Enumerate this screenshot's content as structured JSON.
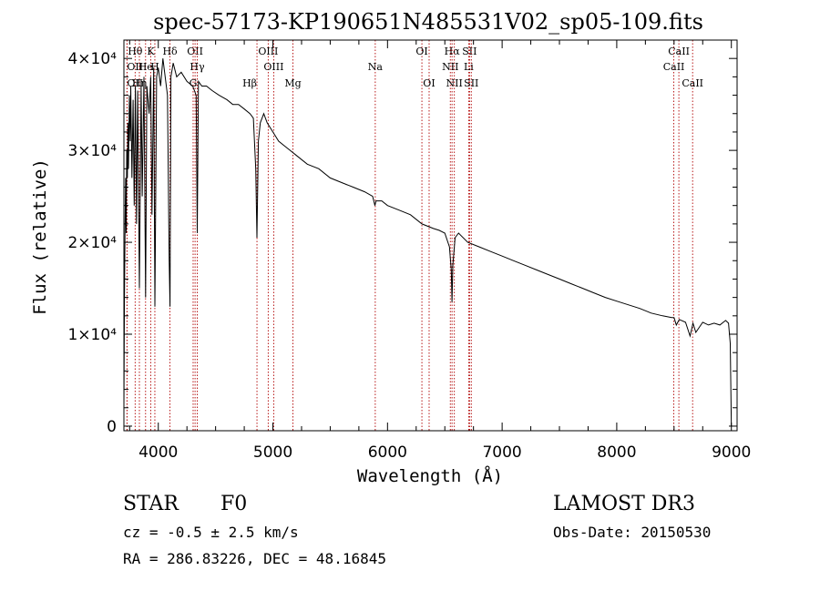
{
  "chart_data": {
    "type": "line",
    "title": "spec-57173-KP190651N485531V02_sp05-109.fits",
    "xlabel": "Wavelength (Å)",
    "ylabel": "Flux (relative)",
    "xlim": [
      3700,
      9050
    ],
    "ylim": [
      -500,
      42000
    ],
    "x_ticks": [
      4000,
      5000,
      6000,
      7000,
      8000,
      9000
    ],
    "y_ticks": [
      {
        "value": 0,
        "label": "0"
      },
      {
        "value": 10000,
        "label": "1×10⁴"
      },
      {
        "value": 20000,
        "label": "2×10⁴"
      },
      {
        "value": 30000,
        "label": "3×10⁴"
      },
      {
        "value": 40000,
        "label": "4×10⁴"
      }
    ],
    "series": [
      {
        "name": "spectrum",
        "x": [
          3700,
          3705,
          3710,
          3715,
          3720,
          3725,
          3730,
          3735,
          3740,
          3748,
          3755,
          3760,
          3770,
          3780,
          3790,
          3800,
          3810,
          3820,
          3835,
          3850,
          3860,
          3875,
          3889,
          3900,
          3920,
          3934,
          3945,
          3960,
          3970,
          3985,
          4000,
          4020,
          4040,
          4060,
          4080,
          4095,
          4102,
          4110,
          4130,
          4160,
          4200,
          4250,
          4300,
          4330,
          4340,
          4350,
          4380,
          4420,
          4470,
          4530,
          4600,
          4650,
          4700,
          4750,
          4800,
          4830,
          4850,
          4861,
          4873,
          4890,
          4920,
          4950,
          5000,
          5050,
          5100,
          5150,
          5200,
          5300,
          5400,
          5500,
          5600,
          5700,
          5800,
          5870,
          5890,
          5900,
          5950,
          6000,
          6100,
          6200,
          6300,
          6400,
          6450,
          6500,
          6540,
          6556,
          6563,
          6570,
          6590,
          6620,
          6700,
          6800,
          6900,
          7000,
          7100,
          7200,
          7300,
          7400,
          7500,
          7600,
          7700,
          7800,
          7900,
          8000,
          8100,
          8200,
          8300,
          8400,
          8480,
          8500,
          8520,
          8545,
          8565,
          8600,
          8640,
          8665,
          8690,
          8750,
          8800,
          8850,
          8900,
          8950,
          8975,
          8990,
          9000,
          9005
        ],
        "values": [
          2000,
          14000,
          22000,
          27000,
          21000,
          30000,
          27000,
          33000,
          28000,
          36000,
          31000,
          37000,
          27000,
          35500,
          24000,
          37000,
          22000,
          36500,
          15000,
          37000,
          25000,
          38000,
          14000,
          37000,
          34000,
          38000,
          23000,
          39000,
          13000,
          38000,
          39000,
          37000,
          40000,
          38000,
          36000,
          18000,
          13000,
          38000,
          39500,
          38000,
          38500,
          37500,
          37000,
          36000,
          21000,
          37500,
          37000,
          37000,
          36500,
          36000,
          35500,
          35000,
          35000,
          34500,
          34000,
          33500,
          28000,
          20500,
          31000,
          33000,
          34000,
          33000,
          32000,
          31000,
          30500,
          30000,
          29500,
          28500,
          28000,
          27000,
          26500,
          26000,
          25500,
          25000,
          24000,
          24500,
          24500,
          24000,
          23500,
          23000,
          22000,
          21500,
          21300,
          21000,
          19500,
          17000,
          13500,
          17500,
          20500,
          21000,
          20000,
          19500,
          19000,
          18500,
          18000,
          17500,
          17000,
          16500,
          16000,
          15500,
          15000,
          14500,
          14000,
          13600,
          13200,
          12800,
          12300,
          12000,
          11800,
          11800,
          11000,
          11600,
          11500,
          11300,
          9800,
          11200,
          10200,
          11300,
          11000,
          11200,
          11000,
          11500,
          11200,
          9000,
          0,
          0
        ]
      }
    ],
    "line_markers": [
      {
        "name": "Hβ",
        "wavelength": 4861,
        "row": 2,
        "anchor": "end"
      },
      {
        "name": "OIII",
        "wavelength": 4959,
        "row": 0,
        "anchor": "middle"
      },
      {
        "name": "OIII",
        "wavelength": 5007,
        "row": 1,
        "anchor": "middle"
      },
      {
        "name": "Mg",
        "wavelength": 5175,
        "row": 2,
        "anchor": "middle"
      },
      {
        "name": "Na",
        "wavelength": 5893,
        "row": 1,
        "anchor": "middle"
      },
      {
        "name": "OI",
        "wavelength": 6300,
        "row": 0,
        "anchor": "middle"
      },
      {
        "name": "OI",
        "wavelength": 6363,
        "row": 2,
        "anchor": "middle"
      },
      {
        "name": "Hα",
        "wavelength": 6563,
        "row": 0,
        "anchor": "middle"
      },
      {
        "name": "NII",
        "wavelength": 6548,
        "row": 1,
        "anchor": "middle"
      },
      {
        "name": "NII",
        "wavelength": 6583,
        "row": 2,
        "anchor": "middle"
      },
      {
        "name": "SII",
        "wavelength": 6716,
        "row": 0,
        "anchor": "middle"
      },
      {
        "name": "Li",
        "wavelength": 6708,
        "row": 1,
        "anchor": "middle"
      },
      {
        "name": "SII",
        "wavelength": 6731,
        "row": 2,
        "anchor": "middle"
      },
      {
        "name": "CaII",
        "wavelength": 8542,
        "row": 0,
        "anchor": "middle"
      },
      {
        "name": "CaII",
        "wavelength": 8498,
        "row": 1,
        "anchor": "middle"
      },
      {
        "name": "CaII",
        "wavelength": 8662,
        "row": 2,
        "anchor": "middle"
      },
      {
        "name": "Hδ",
        "wavelength": 4102,
        "row": 0,
        "anchor": "middle"
      },
      {
        "name": "OII",
        "wavelength": 4321,
        "row": 0,
        "anchor": "middle"
      },
      {
        "name": "Hγ",
        "wavelength": 4340,
        "row": 1,
        "anchor": "middle"
      },
      {
        "name": "G",
        "wavelength": 4304,
        "row": 2,
        "anchor": "middle"
      },
      {
        "name": "Hθ",
        "wavelength": 3798,
        "row": 0,
        "anchor": "middle"
      },
      {
        "name": "K",
        "wavelength": 3934,
        "row": 0,
        "anchor": "middle"
      },
      {
        "name": "He",
        "wavelength": 3889,
        "row": 1,
        "anchor": "middle"
      },
      {
        "name": "H",
        "wavelength": 3970,
        "row": 1,
        "anchor": "middle"
      },
      {
        "name": "OII",
        "wavelength": 3727,
        "row": 1,
        "anchor": "start"
      },
      {
        "name": "OII",
        "wavelength": 3727,
        "row": 2,
        "anchor": "start"
      },
      {
        "name": "Hη",
        "wavelength": 3835,
        "row": 2,
        "anchor": "middle"
      }
    ]
  },
  "info": {
    "object_class": "STAR",
    "subclass": "F0",
    "survey": "LAMOST DR3",
    "redshift": "cz = -0.5 ± 2.5 km/s",
    "obs_date": "Obs-Date: 20150530",
    "coords": "RA = 286.83226, DEC =  48.16845"
  }
}
